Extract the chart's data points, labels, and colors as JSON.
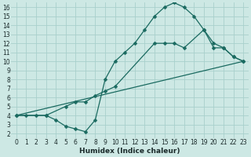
{
  "xlabel": "Humidex (Indice chaleur)",
  "background_color": "#cde8e4",
  "grid_color": "#a8d0cc",
  "line_color": "#1a6a60",
  "xlim": [
    -0.5,
    23.5
  ],
  "ylim": [
    1.5,
    16.5
  ],
  "xticks": [
    0,
    1,
    2,
    3,
    4,
    5,
    6,
    7,
    8,
    9,
    10,
    11,
    12,
    13,
    14,
    15,
    16,
    17,
    18,
    19,
    20,
    21,
    22,
    23
  ],
  "yticks": [
    2,
    3,
    4,
    5,
    6,
    7,
    8,
    9,
    10,
    11,
    12,
    13,
    14,
    15,
    16
  ],
  "line1_x": [
    0,
    1,
    2,
    3,
    4,
    5,
    6,
    7,
    8,
    9,
    10,
    11,
    12,
    13,
    14,
    15,
    16,
    17,
    18,
    19,
    20,
    21,
    22,
    23
  ],
  "line1_y": [
    4,
    4,
    4,
    4,
    3.5,
    2.8,
    2.5,
    2.2,
    3.5,
    8,
    10,
    11,
    12,
    13.5,
    15,
    16,
    16.5,
    16,
    15,
    13.5,
    12,
    11.5,
    10.5,
    10
  ],
  "line2_x": [
    0,
    3,
    5,
    6,
    7,
    8,
    9,
    10,
    14,
    15,
    16,
    17,
    19,
    20,
    21,
    22,
    23
  ],
  "line2_y": [
    4,
    4,
    5,
    5.5,
    5.5,
    6.2,
    6.7,
    7.2,
    12,
    12,
    12,
    11.5,
    13.5,
    11.5,
    11.5,
    10.5,
    10
  ],
  "line3_x": [
    0,
    23
  ],
  "line3_y": [
    4,
    10
  ],
  "marker": "D",
  "markersize": 2.5,
  "tick_fontsize": 5.5,
  "xlabel_fontsize": 6.5
}
